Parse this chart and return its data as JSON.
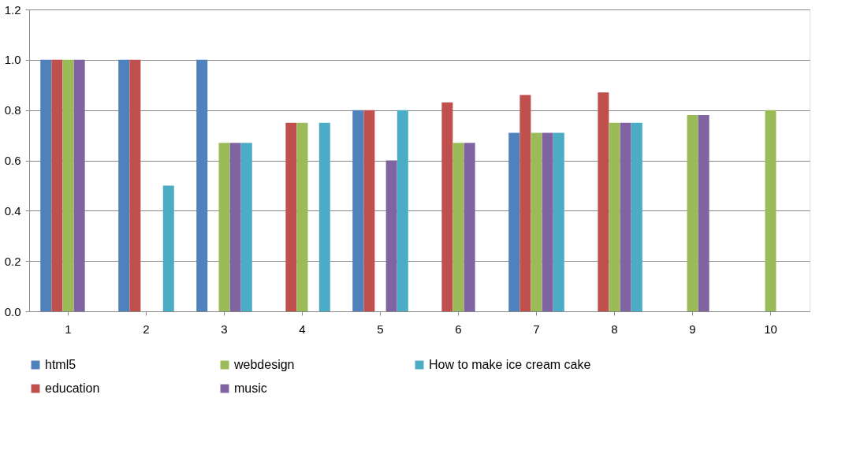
{
  "chart_data": {
    "type": "bar",
    "categories": [
      "1",
      "2",
      "3",
      "4",
      "5",
      "6",
      "7",
      "8",
      "9",
      "10"
    ],
    "series": [
      {
        "name": "html5",
        "color": "#4f81bd",
        "values": [
          1.0,
          1.0,
          1.0,
          null,
          0.8,
          null,
          0.71,
          null,
          null,
          null
        ]
      },
      {
        "name": "education",
        "color": "#c0504d",
        "values": [
          1.0,
          1.0,
          null,
          0.75,
          0.8,
          0.83,
          0.86,
          0.87,
          null,
          null
        ]
      },
      {
        "name": "webdesign",
        "color": "#9bbb59",
        "values": [
          1.0,
          null,
          0.67,
          0.75,
          null,
          0.67,
          0.71,
          0.75,
          0.78,
          0.8
        ]
      },
      {
        "name": "music",
        "color": "#8064a2",
        "values": [
          1.0,
          null,
          0.67,
          null,
          0.6,
          0.67,
          0.71,
          0.75,
          0.78,
          null
        ]
      },
      {
        "name": "How to make ice cream cake",
        "color": "#4bacc6",
        "values": [
          null,
          0.5,
          0.67,
          0.75,
          0.8,
          null,
          0.71,
          0.75,
          null,
          null
        ]
      }
    ],
    "ylim": [
      0,
      1.2
    ],
    "yticks": [
      {
        "value": 0,
        "label": "0.0"
      },
      {
        "value": 0.2,
        "label": "0.2"
      },
      {
        "value": 0.4,
        "label": "0.4"
      },
      {
        "value": 0.6,
        "label": "0.6"
      },
      {
        "value": 0.8,
        "label": "0.8"
      },
      {
        "value": 1.0,
        "label": "1.0"
      },
      {
        "value": 1.2,
        "label": "1.2"
      }
    ],
    "grid": "y",
    "legend": "bottom"
  }
}
